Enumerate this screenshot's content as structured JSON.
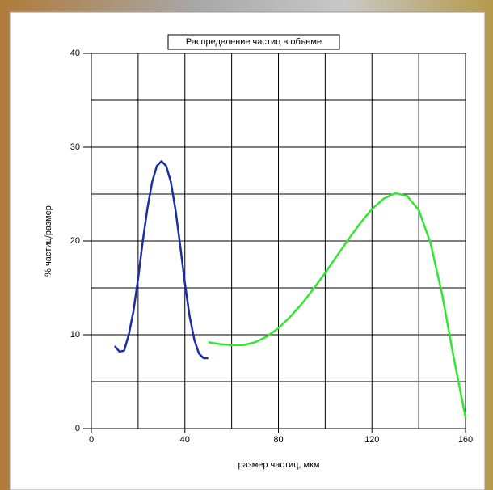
{
  "chart_data": {
    "type": "line",
    "title": "Распределение частиц в объеме",
    "xlabel": "размер частиц, мкм",
    "ylabel": "% частиц/размер",
    "xlim": [
      0,
      160
    ],
    "ylim": [
      0,
      40
    ],
    "xticks": [
      0,
      40,
      80,
      120,
      160
    ],
    "yticks": [
      0,
      10,
      20,
      30,
      40
    ],
    "xgrid": [
      0,
      20,
      40,
      60,
      80,
      100,
      120,
      140,
      160
    ],
    "ygrid": [
      0,
      5,
      10,
      15,
      20,
      25,
      30,
      35,
      40
    ],
    "grid": true,
    "series": [
      {
        "color": "#1a2fa0",
        "x": [
          10,
          12,
          14,
          16,
          18,
          20,
          22,
          24,
          26,
          28,
          30,
          32,
          34,
          36,
          38,
          40,
          42,
          44,
          46,
          48,
          50
        ],
        "values": [
          8.8,
          8.2,
          8.3,
          10,
          12.5,
          16,
          20,
          23.5,
          26.3,
          28,
          28.5,
          28,
          26.3,
          23.3,
          19.5,
          15.5,
          12,
          9.5,
          8,
          7.5,
          7.5
        ]
      },
      {
        "color": "#33e633",
        "x": [
          50,
          55,
          60,
          65,
          70,
          75,
          80,
          85,
          90,
          95,
          100,
          105,
          110,
          115,
          120,
          125,
          130,
          135,
          140,
          145,
          150,
          155,
          160
        ],
        "values": [
          9.2,
          9,
          8.9,
          8.9,
          9.2,
          9.8,
          10.7,
          11.9,
          13.3,
          14.9,
          16.6,
          18.4,
          20.2,
          21.9,
          23.4,
          24.5,
          25.1,
          24.8,
          23.3,
          19.8,
          14.3,
          7.5,
          1.2
        ]
      }
    ]
  }
}
